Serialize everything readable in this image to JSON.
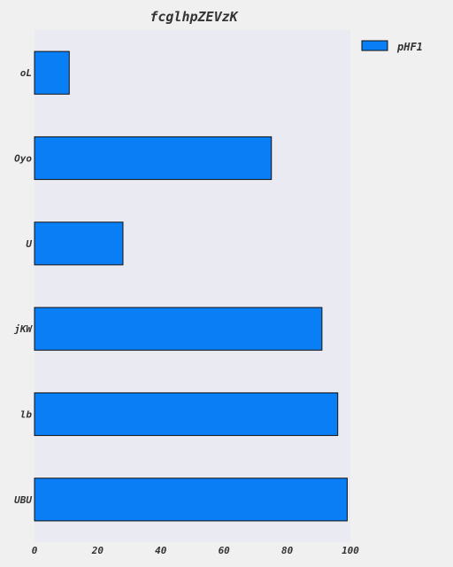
{
  "chart_data": {
    "type": "bar",
    "orientation": "horizontal",
    "title": "fcglhpZEVzK",
    "categories": [
      "oL",
      "Oyo",
      "U",
      "jKW",
      "lb",
      "UBU"
    ],
    "series": [
      {
        "name": "pHF1",
        "values": [
          11,
          75,
          28,
          91,
          96,
          99
        ]
      }
    ],
    "xlim": [
      0,
      100
    ],
    "xticks": [
      0,
      20,
      40,
      60,
      80,
      100
    ],
    "grid": false,
    "legend": "top-right",
    "colors": {
      "bar": "#0a7ff5",
      "bar_edge": "#111111",
      "plot_bg": "#eaeaf2",
      "page_bg": "#f0f0f0"
    }
  }
}
